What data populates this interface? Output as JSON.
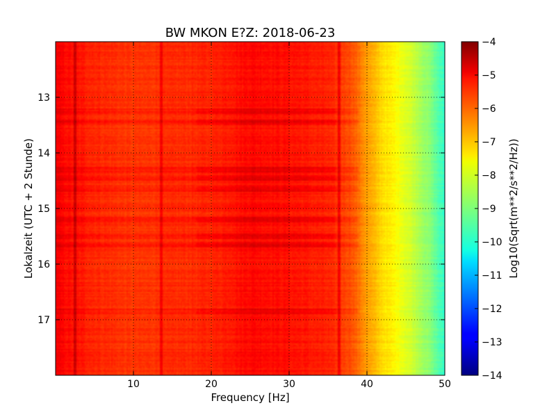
{
  "chart_data": {
    "type": "heatmap",
    "title": "BW MKON E?Z: 2018-06-23",
    "xlabel": "Frequency [Hz]",
    "ylabel": "Lokalzeit (UTC + 2 Stunde)",
    "xlim": [
      0,
      50
    ],
    "ylim": [
      12,
      18
    ],
    "y_inverted": true,
    "x_ticks": [
      10,
      20,
      30,
      40,
      50
    ],
    "y_ticks": [
      13,
      14,
      15,
      16,
      17
    ],
    "grid": true,
    "grid_style": "dotted",
    "colormap": "jet",
    "colorbar": {
      "label": "Log10(Sqrt(m**2/s**2/Hz))",
      "vmin": -14,
      "vmax": -4,
      "ticks": [
        -4,
        -5,
        -6,
        -7,
        -8,
        -9,
        -10,
        -11,
        -12,
        -13,
        -14
      ]
    },
    "spectral_profile": {
      "frequency_hz": [
        0,
        2,
        5,
        10,
        15,
        20,
        25,
        30,
        35,
        38,
        40,
        42,
        44,
        46,
        48,
        50
      ],
      "log10_amplitude": [
        -5.2,
        -5.4,
        -5.6,
        -5.8,
        -5.7,
        -5.6,
        -5.3,
        -5.4,
        -5.6,
        -6.0,
        -6.8,
        -7.4,
        -7.8,
        -8.3,
        -8.9,
        -9.8
      ]
    },
    "spectral_lines_hz": [
      2.5,
      13.5,
      36.5
    ],
    "elevated_time_bands_h": [
      13.25,
      13.45,
      14.3,
      14.45,
      14.65,
      15.2,
      15.5,
      15.65,
      16.85
    ]
  }
}
